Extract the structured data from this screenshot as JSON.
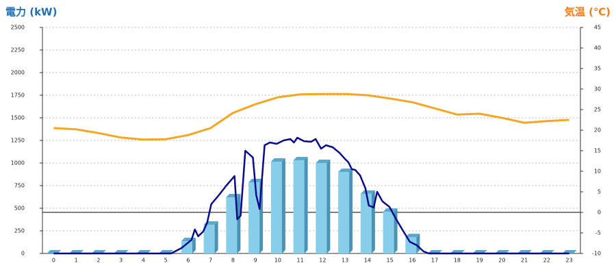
{
  "chart_data": {
    "type": "bar",
    "y_label": "電力 (kW)",
    "y2_label": "気温 (℃)",
    "categories": [
      "0",
      "1",
      "2",
      "3",
      "4",
      "5",
      "6",
      "7",
      "8",
      "9",
      "10",
      "11",
      "12",
      "13",
      "14",
      "15",
      "16",
      "17",
      "18",
      "19",
      "20",
      "21",
      "22",
      "23"
    ],
    "ylim": [
      0,
      2500
    ],
    "yticks": [
      0,
      250,
      500,
      750,
      1000,
      1250,
      1500,
      1750,
      2000,
      2250,
      2500
    ],
    "y2lim": [
      -10,
      45
    ],
    "y2ticks": [
      -10,
      -5,
      0,
      5,
      10,
      15,
      20,
      25,
      30,
      35,
      40,
      45
    ],
    "grid": true,
    "series": [
      {
        "type": "bar",
        "color": "#87ceeb",
        "values": [
          0,
          0,
          0,
          0,
          0,
          0,
          136,
          318,
          621,
          788,
          1015,
          1030,
          1000,
          901,
          660,
          460,
          180,
          0,
          0,
          0,
          0,
          0,
          0,
          0
        ]
      },
      {
        "type": "line",
        "color": "#0a0a8c",
        "x": [
          0,
          5.24,
          5.7,
          6.15,
          6.3,
          6.45,
          6.67,
          6.85,
          7.03,
          7.37,
          7.73,
          8.07,
          8.19,
          8.34,
          8.55,
          8.89,
          9.04,
          9.19,
          9.41,
          9.65,
          9.95,
          10.26,
          10.56,
          10.72,
          10.87,
          11.17,
          11.48,
          11.69,
          11.93,
          12.15,
          12.45,
          12.75,
          13,
          13.15,
          13.3,
          13.45,
          13.67,
          13.91,
          14.06,
          14.28,
          14.43,
          14.67,
          14.98,
          15.28,
          15.59,
          15.89,
          16.2,
          16.5,
          16.74,
          23
        ],
        "values": [
          0,
          0,
          60,
          150,
          265,
          190,
          242,
          341,
          545,
          644,
          758,
          856,
          379,
          417,
          1136,
          1061,
          644,
          492,
          1197,
          1227,
          1212,
          1250,
          1265,
          1227,
          1280,
          1242,
          1235,
          1265,
          1159,
          1197,
          1174,
          1114,
          1045,
          1008,
          932,
          924,
          864,
          720,
          530,
          508,
          682,
          576,
          515,
          379,
          250,
          129,
          91,
          23,
          0,
          0
        ]
      },
      {
        "type": "line",
        "color": "#f5a623",
        "axis": "y2",
        "values": [
          20.5,
          20.2,
          19.3,
          18.2,
          17.7,
          17.8,
          18.8,
          20.5,
          24.2,
          26.3,
          28,
          28.7,
          28.8,
          28.8,
          28.5,
          27.7,
          26.8,
          25.3,
          23.8,
          24,
          23,
          21.8,
          22.2,
          22.5
        ]
      }
    ]
  }
}
